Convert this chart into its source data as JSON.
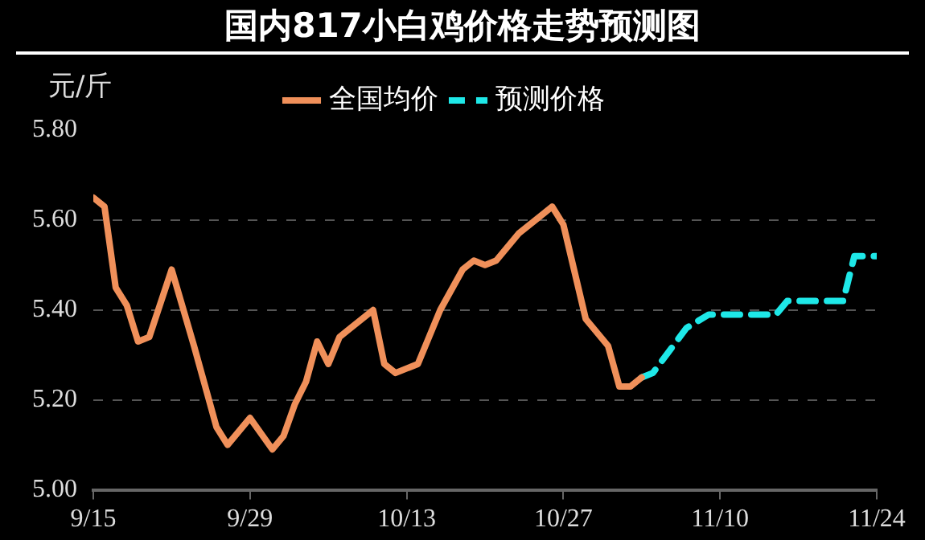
{
  "chart_data": {
    "type": "line",
    "title": "国内817小白鸡价格走势预测图",
    "ylabel": "元/斤",
    "ylim": [
      5.0,
      5.8
    ],
    "yticks": [
      {
        "value": 5.0,
        "label": "5.00"
      },
      {
        "value": 5.2,
        "label": "5.20"
      },
      {
        "value": 5.4,
        "label": "5.40"
      },
      {
        "value": 5.6,
        "label": "5.60"
      },
      {
        "value": 5.8,
        "label": "5.80"
      }
    ],
    "xlim": [
      "--09-15",
      "--11-24"
    ],
    "xticks": [
      {
        "value": "--09-15",
        "label": "9/15"
      },
      {
        "value": "--09-29",
        "label": "9/29"
      },
      {
        "value": "--10-13",
        "label": "10/13"
      },
      {
        "value": "--10-27",
        "label": "10/27"
      },
      {
        "value": "--11-10",
        "label": "11/10"
      },
      {
        "value": "--11-24",
        "label": "11/24"
      }
    ],
    "grid": "y",
    "legend": "top",
    "marker": "none",
    "series": [
      {
        "name": "全国均价",
        "color": "#f0905a",
        "line_style": "solid",
        "x": [
          "--09-15",
          "--09-16",
          "--09-17",
          "--09-18",
          "--09-19",
          "--09-20",
          "--09-22",
          "--09-24",
          "--09-26",
          "--09-27",
          "--09-29",
          "--10-01",
          "--10-02",
          "--10-03",
          "--10-04",
          "--10-05",
          "--10-06",
          "--10-07",
          "--10-08",
          "--10-10",
          "--10-11",
          "--10-12",
          "--10-14",
          "--10-16",
          "--10-18",
          "--10-19",
          "--10-20",
          "--10-21",
          "--10-23",
          "--10-25",
          "--10-26",
          "--10-27",
          "--10-29",
          "--10-31",
          "--11-01",
          "--11-02",
          "--11-03"
        ],
        "values": [
          5.65,
          5.63,
          5.45,
          5.41,
          5.33,
          5.34,
          5.49,
          5.32,
          5.14,
          5.1,
          5.16,
          5.09,
          5.12,
          5.19,
          5.24,
          5.33,
          5.28,
          5.34,
          5.36,
          5.4,
          5.28,
          5.26,
          5.28,
          5.4,
          5.49,
          5.51,
          5.5,
          5.51,
          5.57,
          5.61,
          5.63,
          5.59,
          5.38,
          5.32,
          5.23,
          5.23,
          5.25
        ]
      },
      {
        "name": "预测价格",
        "color": "#1ee8e8",
        "line_style": "dashed",
        "x": [
          "--11-03",
          "--11-04",
          "--11-07",
          "--11-09",
          "--11-15",
          "--11-16",
          "--11-21",
          "--11-22",
          "--11-24"
        ],
        "values": [
          5.25,
          5.26,
          5.36,
          5.39,
          5.39,
          5.42,
          5.42,
          5.52,
          5.52
        ]
      }
    ]
  }
}
